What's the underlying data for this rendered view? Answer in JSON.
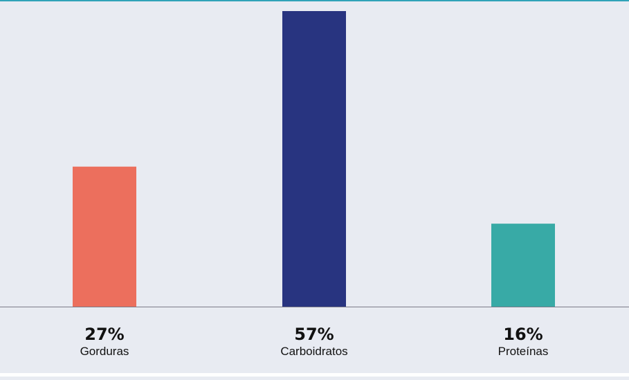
{
  "chart_data": {
    "type": "bar",
    "categories": [
      "Gorduras",
      "Carboidratos",
      "Proteínas"
    ],
    "values": [
      27,
      57,
      16
    ],
    "value_labels": [
      "27%",
      "57%",
      "16%"
    ],
    "colors": [
      "#ec6f5d",
      "#283480",
      "#38aaa6"
    ],
    "unit": "%",
    "ylim": [
      0,
      57
    ],
    "title": "",
    "xlabel": "",
    "ylabel": "",
    "grid": false
  },
  "colors": {
    "background": "#e8ebf2",
    "top_rule": "#2fa3b8",
    "axis": "#7a7a88"
  }
}
